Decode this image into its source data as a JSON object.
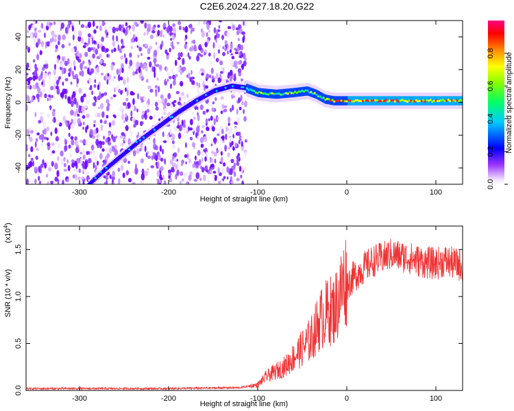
{
  "title": "C2E6.2024.227.18.20.G22",
  "chart_data": [
    {
      "type": "heatmap",
      "xlabel": "Height of straight line (km)",
      "ylabel": "Frequency (Hz)",
      "xlim": [
        -360,
        130
      ],
      "ylim": [
        -50,
        50
      ],
      "xticks": [
        -300,
        -200,
        -100,
        0,
        100
      ],
      "yticks": [
        -40,
        -20,
        0,
        20,
        40
      ],
      "colorbar": {
        "label": "Normalized spectral amplitude",
        "range": [
          0,
          1
        ],
        "ticks": [
          "0.0",
          "0.2",
          "0.4",
          "0.6",
          "0.8"
        ],
        "tick_values": [
          0,
          0.2,
          0.4,
          0.6,
          0.8
        ]
      },
      "noise_region_x": [
        -360,
        -113
      ],
      "ridge": {
        "name": "",
        "points": [
          [
            -290,
            -50
          ],
          [
            -270,
            -40
          ],
          [
            -250,
            -31
          ],
          [
            -230,
            -22
          ],
          [
            -210,
            -14
          ],
          [
            -190,
            -6
          ],
          [
            -170,
            1
          ],
          [
            -150,
            7
          ],
          [
            -130,
            10
          ],
          [
            -115,
            9
          ],
          [
            -100,
            6
          ],
          [
            -80,
            5
          ],
          [
            -60,
            6
          ],
          [
            -45,
            7
          ],
          [
            -35,
            5
          ],
          [
            -25,
            2
          ],
          [
            -15,
            1
          ],
          [
            0,
            1
          ],
          [
            30,
            1
          ],
          [
            60,
            1
          ],
          [
            90,
            1
          ],
          [
            130,
            1
          ]
        ]
      },
      "colors": [
        "#ffffff",
        "#cc99ff",
        "#6600ff",
        "#0000ff",
        "#00ccff",
        "#00ff66",
        "#66ff00",
        "#ffff00",
        "#ff8800",
        "#ff0000",
        "#ff0080"
      ]
    },
    {
      "type": "line",
      "xlabel": "Height of straight line (km)",
      "ylabel": "SNR (10 * v/v)",
      "multiplier": "(x10^4)",
      "xlim": [
        -360,
        130
      ],
      "ylim": [
        0,
        1.75
      ],
      "xticks": [
        -300,
        -200,
        -100,
        0,
        100
      ],
      "yticks": [
        "0.0",
        "0.5",
        "1.0",
        "1.5"
      ],
      "ytick_values": [
        0,
        0.5,
        1.0,
        1.5
      ],
      "color": "#ee3333",
      "series": [
        {
          "name": "",
          "x": [
            -360,
            -300,
            -200,
            -120,
            -100,
            -90,
            -70,
            -50,
            -40,
            -30,
            -20,
            -15,
            -10,
            -5,
            0,
            10,
            20,
            30,
            40,
            50,
            60,
            70,
            80,
            90,
            100,
            110,
            120,
            130
          ],
          "values": [
            0.02,
            0.02,
            0.02,
            0.03,
            0.06,
            0.15,
            0.25,
            0.45,
            0.55,
            0.75,
            0.85,
            0.85,
            0.95,
            1.1,
            1.2,
            1.3,
            1.38,
            1.45,
            1.48,
            1.52,
            1.5,
            1.48,
            1.45,
            1.43,
            1.42,
            1.45,
            1.42,
            1.4
          ]
        }
      ]
    }
  ]
}
